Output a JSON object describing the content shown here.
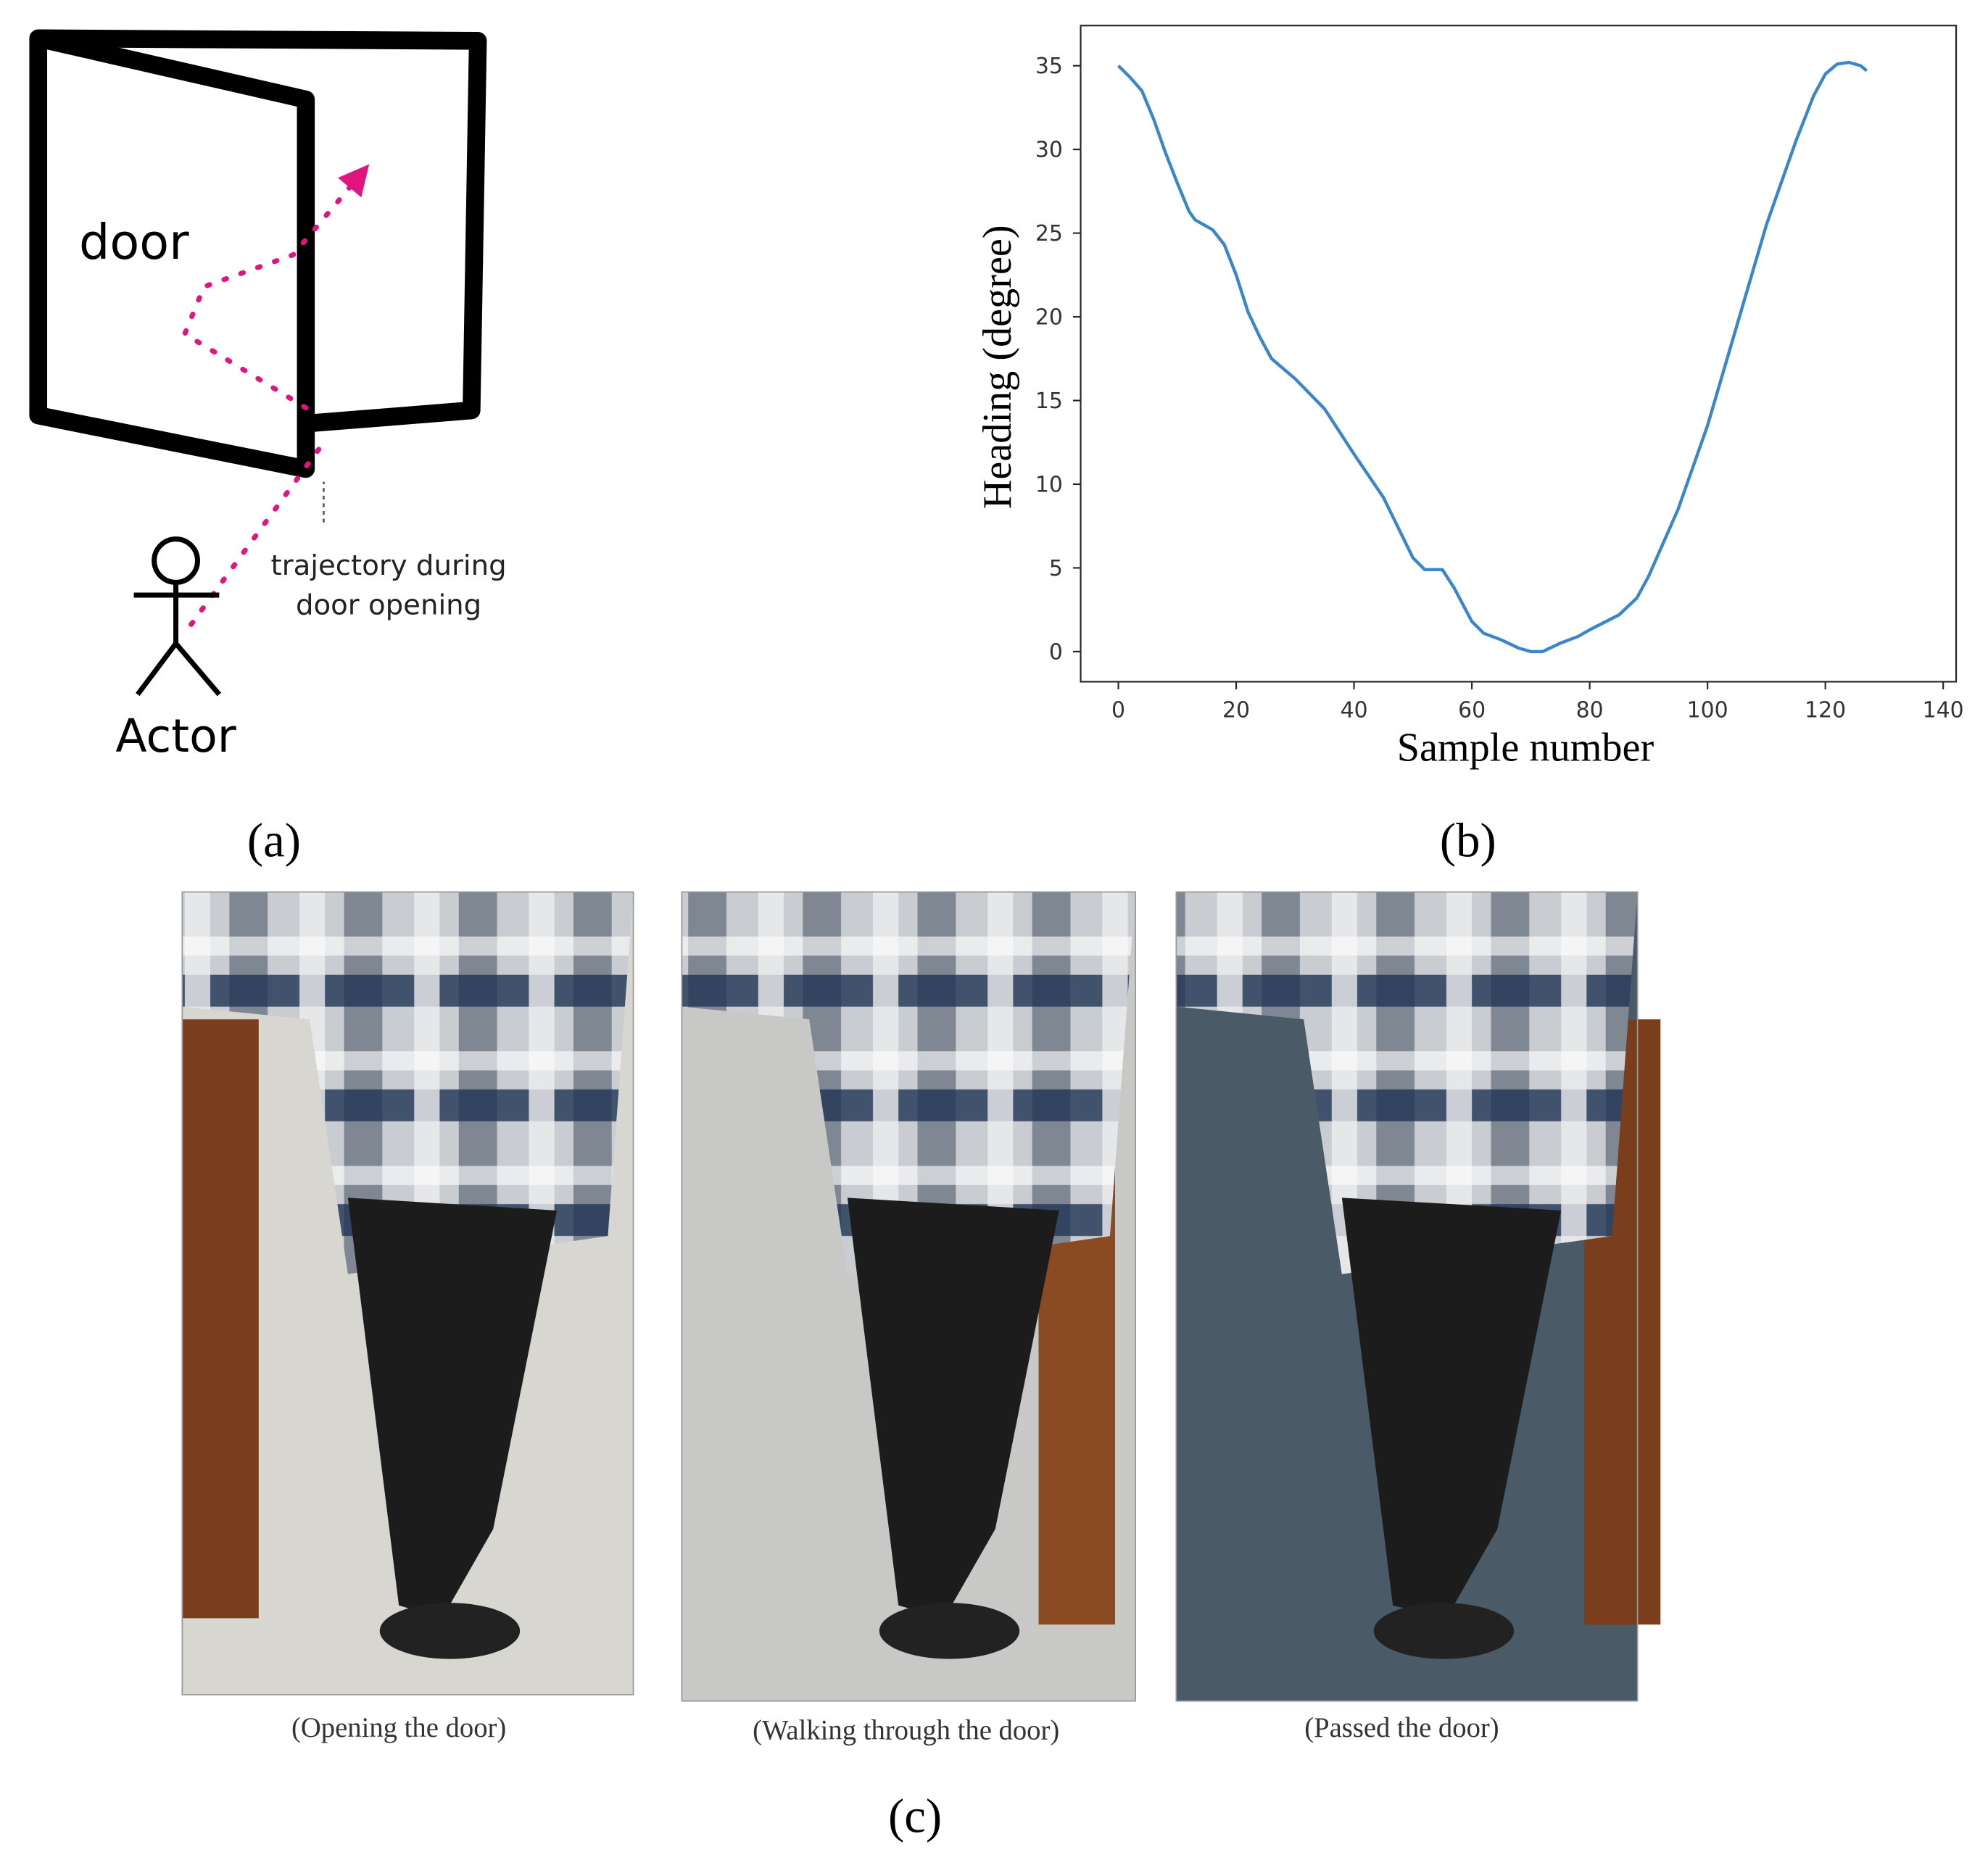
{
  "panel_a": {
    "door_label": "door",
    "annotation": [
      "trajectory during",
      "door opening"
    ],
    "actor_label": "Actor",
    "label": "(a)"
  },
  "chart_data": {
    "type": "line",
    "label": "(b)",
    "x_label": "Sample number",
    "y_label": "Heading (degree)",
    "x": [
      0,
      2,
      4,
      6,
      8,
      10,
      12,
      13,
      16,
      18,
      20,
      22,
      24,
      26,
      30,
      35,
      40,
      45,
      50,
      52,
      55,
      57,
      60,
      62,
      65,
      68,
      70,
      72,
      75,
      78,
      80,
      85,
      88,
      90,
      95,
      100,
      105,
      110,
      115,
      118,
      120,
      122,
      124,
      126,
      127
    ],
    "values": [
      35,
      34.3,
      33.5,
      31.8,
      29.8,
      28,
      26.3,
      25.8,
      25.2,
      24.3,
      22.5,
      20.3,
      18.8,
      17.5,
      16.3,
      14.5,
      11.8,
      9.2,
      5.6,
      4.9,
      4.9,
      3.8,
      1.8,
      1.1,
      0.7,
      0.2,
      0,
      0,
      0.5,
      0.9,
      1.3,
      2.2,
      3.2,
      4.5,
      8.5,
      13.5,
      19.5,
      25.5,
      30.5,
      33.2,
      34.5,
      35.1,
      35.2,
      35,
      34.7
    ],
    "color": "#3a86c8",
    "xlim": [
      -6.4,
      142.2
    ],
    "ylim": [
      -1.8,
      37.4
    ],
    "xticks": [
      0,
      20,
      40,
      60,
      80,
      100,
      120,
      140
    ],
    "yticks": [
      0,
      5,
      10,
      15,
      20,
      25,
      30,
      35
    ]
  },
  "panel_c": {
    "captions": [
      "(Opening the door)",
      "(Walking through the door)",
      "(Passed the door)"
    ],
    "label": "(c)"
  }
}
